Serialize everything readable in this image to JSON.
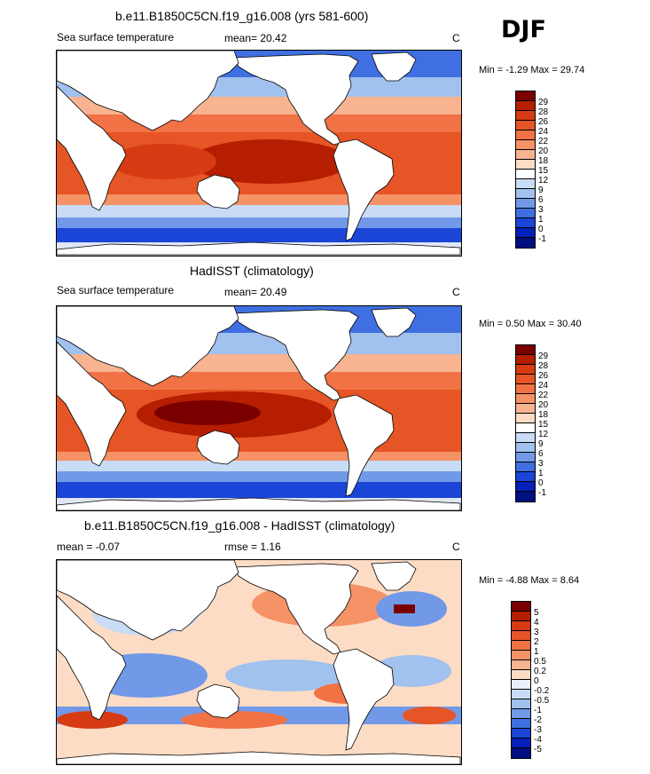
{
  "season": "DJF",
  "panels": [
    {
      "title": "b.e11.B1850C5CN.f19_g16.008 (yrs 581-600)",
      "left_label": "Sea surface temperature",
      "stat": "mean=  20.42",
      "units": "C",
      "minmax": "Min =  -1.29 Max =  29.74",
      "colorbar": {
        "labels": [
          "29",
          "28",
          "26",
          "24",
          "22",
          "20",
          "18",
          "15",
          "12",
          "9",
          "6",
          "3",
          "1",
          "0",
          "-1"
        ],
        "colors": [
          "#7a0000",
          "#b51e00",
          "#d63b13",
          "#e65525",
          "#f07245",
          "#f59266",
          "#f8b490",
          "#fcdcc4",
          "#ffffff",
          "#c8dcf5",
          "#a1c1ee",
          "#7299e8",
          "#3f6fe0",
          "#1a45d6",
          "#0420b8",
          "#001080"
        ]
      }
    },
    {
      "title": "HadISST (climatology)",
      "left_label": "Sea surface temperature",
      "stat": "mean=  20.49",
      "units": "C",
      "minmax": "Min =   0.50 Max =  30.40",
      "colorbar": {
        "labels": [
          "29",
          "28",
          "26",
          "24",
          "22",
          "20",
          "18",
          "15",
          "12",
          "9",
          "6",
          "3",
          "1",
          "0",
          "-1"
        ],
        "colors": [
          "#7a0000",
          "#b51e00",
          "#d63b13",
          "#e65525",
          "#f07245",
          "#f59266",
          "#f8b490",
          "#fcdcc4",
          "#ffffff",
          "#c8dcf5",
          "#a1c1ee",
          "#7299e8",
          "#3f6fe0",
          "#1a45d6",
          "#0420b8",
          "#001080"
        ]
      }
    },
    {
      "title": "b.e11.B1850C5CN.f19_g16.008 - HadISST (climatology)",
      "left_label": "mean =  -0.07",
      "stat": "rmse =  1.16",
      "units": "C",
      "minmax": "Min =  -4.88 Max =   8.64",
      "colorbar": {
        "labels": [
          "5",
          "4",
          "3",
          "2",
          "1",
          "0.5",
          "0.2",
          "0",
          "-0.2",
          "-0.5",
          "-1",
          "-2",
          "-3",
          "-4",
          "-5"
        ],
        "colors": [
          "#7a0000",
          "#b51e00",
          "#d63b13",
          "#e65525",
          "#f07245",
          "#f59266",
          "#f8b490",
          "#fcdcc4",
          "#e8f0fb",
          "#c8dcf5",
          "#a1c1ee",
          "#7299e8",
          "#3f6fe0",
          "#1a45d6",
          "#0420b8",
          "#001080"
        ]
      }
    }
  ]
}
